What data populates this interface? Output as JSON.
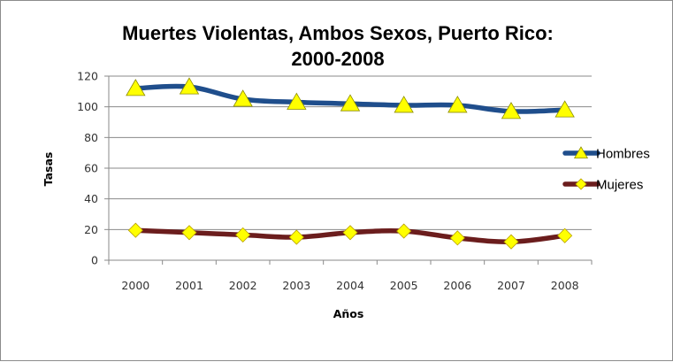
{
  "chart_data": {
    "type": "line",
    "title_lines": [
      "Muertes Violentas, Ambos Sexos, Puerto Rico:",
      "2000-2008"
    ],
    "xlabel": "Años",
    "ylabel": "Tasas",
    "x": [
      "2000",
      "2001",
      "2002",
      "2003",
      "2004",
      "2005",
      "2006",
      "2007",
      "2008"
    ],
    "yticks": [
      "0",
      "20",
      "40",
      "60",
      "80",
      "100",
      "120"
    ],
    "ylim": [
      0,
      120
    ],
    "grid": "horizontal",
    "legend_position": "right",
    "series": [
      {
        "name": "Hombres",
        "values": [
          112,
          113,
          105,
          103,
          102,
          101,
          101,
          97,
          98
        ],
        "line_color": "#1f4e8c",
        "marker": "triangle",
        "marker_color": "#ffff00"
      },
      {
        "name": "Mujeres",
        "values": [
          19.5,
          18,
          16.5,
          15,
          18,
          19,
          14.5,
          12,
          16
        ],
        "line_color": "#6b1d1d",
        "marker": "diamond",
        "marker_color": "#ffff00"
      }
    ]
  }
}
